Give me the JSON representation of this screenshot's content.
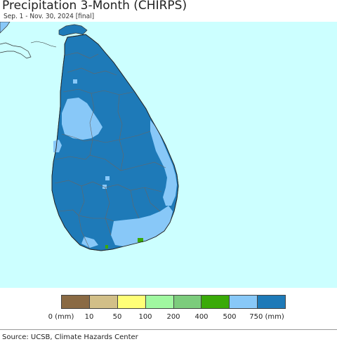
{
  "header": {
    "title": "Precipitation 3-Month (CHIRPS)",
    "subtitle": "Sep. 1 - Nov. 30, 2024 [final]"
  },
  "map": {
    "ocean_color": "#ccffff",
    "land_dominant_color": "#1e7ab8",
    "land_secondary_color": "#88c8f8",
    "land_accent_color": "#3aaa08",
    "border_color": "#6b6b6b"
  },
  "legend": {
    "swatches": [
      {
        "color": "#8a6a44"
      },
      {
        "color": "#d2bf88"
      },
      {
        "color": "#ffff77"
      },
      {
        "color": "#a0f8a0"
      },
      {
        "color": "#7ccc7c"
      },
      {
        "color": "#3aaa08"
      },
      {
        "color": "#88c8f8"
      },
      {
        "color": "#1e7ab8"
      }
    ],
    "ticks": [
      "0 (mm)",
      "10",
      "50",
      "100",
      "200",
      "400",
      "500",
      "750 (mm)"
    ]
  },
  "footer": {
    "source": "Source: UCSB, Climate Hazards Center"
  }
}
